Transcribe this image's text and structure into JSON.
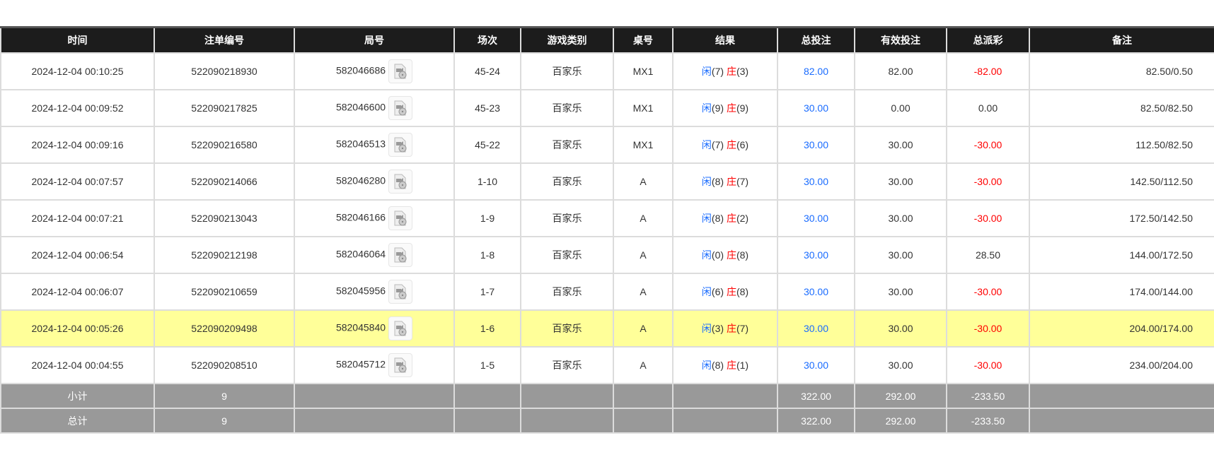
{
  "headers": [
    "时间",
    "注单编号",
    "局号",
    "场次",
    "游戏类别",
    "桌号",
    "结果",
    "总投注",
    "有效投注",
    "总派彩",
    "备注"
  ],
  "rows": [
    {
      "time": "2024-12-04 00:10:25",
      "bet_id": "522090218930",
      "round": "582046686",
      "shoe": "45-24",
      "game": "百家乐",
      "table": "MX1",
      "player_label": "闲",
      "player": "(7)",
      "banker_label": "庄",
      "banker": "(3)",
      "total_bet": "82.00",
      "valid_bet": "82.00",
      "payout": "-82.00",
      "payout_neg": true,
      "remark": "82.50/0.50",
      "highlight": false
    },
    {
      "time": "2024-12-04 00:09:52",
      "bet_id": "522090217825",
      "round": "582046600",
      "shoe": "45-23",
      "game": "百家乐",
      "table": "MX1",
      "player_label": "闲",
      "player": "(9)",
      "banker_label": "庄",
      "banker": "(9)",
      "total_bet": "30.00",
      "valid_bet": "0.00",
      "payout": "0.00",
      "payout_neg": false,
      "remark": "82.50/82.50",
      "highlight": false
    },
    {
      "time": "2024-12-04 00:09:16",
      "bet_id": "522090216580",
      "round": "582046513",
      "shoe": "45-22",
      "game": "百家乐",
      "table": "MX1",
      "player_label": "闲",
      "player": "(7)",
      "banker_label": "庄",
      "banker": "(6)",
      "total_bet": "30.00",
      "valid_bet": "30.00",
      "payout": "-30.00",
      "payout_neg": true,
      "remark": "112.50/82.50",
      "highlight": false
    },
    {
      "time": "2024-12-04 00:07:57",
      "bet_id": "522090214066",
      "round": "582046280",
      "shoe": "1-10",
      "game": "百家乐",
      "table": "A",
      "player_label": "闲",
      "player": "(8)",
      "banker_label": "庄",
      "banker": "(7)",
      "total_bet": "30.00",
      "valid_bet": "30.00",
      "payout": "-30.00",
      "payout_neg": true,
      "remark": "142.50/112.50",
      "highlight": false
    },
    {
      "time": "2024-12-04 00:07:21",
      "bet_id": "522090213043",
      "round": "582046166",
      "shoe": "1-9",
      "game": "百家乐",
      "table": "A",
      "player_label": "闲",
      "player": "(8)",
      "banker_label": "庄",
      "banker": "(2)",
      "total_bet": "30.00",
      "valid_bet": "30.00",
      "payout": "-30.00",
      "payout_neg": true,
      "remark": "172.50/142.50",
      "highlight": false
    },
    {
      "time": "2024-12-04 00:06:54",
      "bet_id": "522090212198",
      "round": "582046064",
      "shoe": "1-8",
      "game": "百家乐",
      "table": "A",
      "player_label": "闲",
      "player": "(0)",
      "banker_label": "庄",
      "banker": "(8)",
      "total_bet": "30.00",
      "valid_bet": "30.00",
      "payout": "28.50",
      "payout_neg": false,
      "remark": "144.00/172.50",
      "highlight": false
    },
    {
      "time": "2024-12-04 00:06:07",
      "bet_id": "522090210659",
      "round": "582045956",
      "shoe": "1-7",
      "game": "百家乐",
      "table": "A",
      "player_label": "闲",
      "player": "(6)",
      "banker_label": "庄",
      "banker": "(8)",
      "total_bet": "30.00",
      "valid_bet": "30.00",
      "payout": "-30.00",
      "payout_neg": true,
      "remark": "174.00/144.00",
      "highlight": false
    },
    {
      "time": "2024-12-04 00:05:26",
      "bet_id": "522090209498",
      "round": "582045840",
      "shoe": "1-6",
      "game": "百家乐",
      "table": "A",
      "player_label": "闲",
      "player": "(3)",
      "banker_label": "庄",
      "banker": "(7)",
      "total_bet": "30.00",
      "valid_bet": "30.00",
      "payout": "-30.00",
      "payout_neg": true,
      "remark": "204.00/174.00",
      "highlight": true
    },
    {
      "time": "2024-12-04 00:04:55",
      "bet_id": "522090208510",
      "round": "582045712",
      "shoe": "1-5",
      "game": "百家乐",
      "table": "A",
      "player_label": "闲",
      "player": "(8)",
      "banker_label": "庄",
      "banker": "(1)",
      "total_bet": "30.00",
      "valid_bet": "30.00",
      "payout": "-30.00",
      "payout_neg": true,
      "remark": "234.00/204.00",
      "highlight": false
    }
  ],
  "subtotal": {
    "label": "小计",
    "count": "9",
    "total_bet": "322.00",
    "valid_bet": "292.00",
    "payout": "-233.50"
  },
  "grandtotal": {
    "label": "总计",
    "count": "9",
    "total_bet": "322.00",
    "valid_bet": "292.00",
    "payout": "-233.50"
  },
  "colors": {
    "header_bg": "#1c1c1c",
    "highlight": "#ffff99",
    "summary_bg": "#999999",
    "blue": "#1a6cff",
    "red": "#ff0000"
  },
  "icons": {
    "replay": "video-file-icon"
  }
}
